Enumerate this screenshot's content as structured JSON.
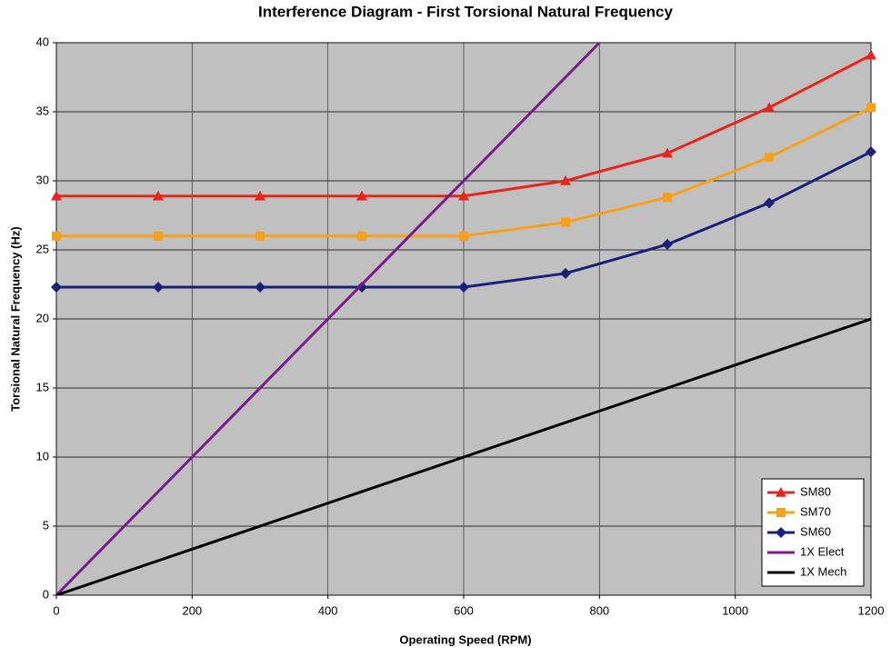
{
  "chart_data": {
    "type": "line",
    "title": "Interference Diagram - First Torsional Natural Frequency",
    "x_label": "Operating Speed (RPM)",
    "y_label": "Torsional Natural Frequency (Hz)",
    "xlim": [
      0,
      1200
    ],
    "xticks": [
      0,
      200,
      400,
      600,
      800,
      1000,
      1200
    ],
    "ylim": [
      0,
      40
    ],
    "yticks": [
      0,
      5,
      10,
      15,
      20,
      25,
      30,
      35,
      40
    ],
    "grid": true,
    "legend": "bottom-right",
    "background": "#c0c0c0",
    "series": [
      {
        "name": "SM80",
        "color": "#e8251c",
        "marker": "triangle",
        "x": [
          0,
          150,
          300,
          450,
          600,
          750,
          900,
          1050,
          1200
        ],
        "values": [
          28.9,
          28.9,
          28.9,
          28.9,
          28.9,
          30,
          32,
          35.3,
          39.1
        ]
      },
      {
        "name": "SM70",
        "color": "#f7a11a",
        "marker": "square",
        "x": [
          0,
          150,
          300,
          450,
          600,
          750,
          900,
          1050,
          1200
        ],
        "values": [
          26,
          26,
          26,
          26,
          26,
          27,
          28.8,
          31.7,
          35.3
        ]
      },
      {
        "name": "SM60",
        "color": "#1a1f7a",
        "marker": "diamond",
        "x": [
          0,
          150,
          300,
          450,
          600,
          750,
          900,
          1050,
          1200
        ],
        "values": [
          22.3,
          22.3,
          22.3,
          22.3,
          22.3,
          23.3,
          25.4,
          28.4,
          32.1
        ]
      },
      {
        "name": "1X Elect",
        "color": "#7b1a8c",
        "marker": null,
        "x": [
          0,
          800
        ],
        "values": [
          0,
          40
        ]
      },
      {
        "name": "1X Mech",
        "color": "#000000",
        "marker": null,
        "x": [
          0,
          1200
        ],
        "values": [
          0,
          20
        ]
      }
    ]
  }
}
